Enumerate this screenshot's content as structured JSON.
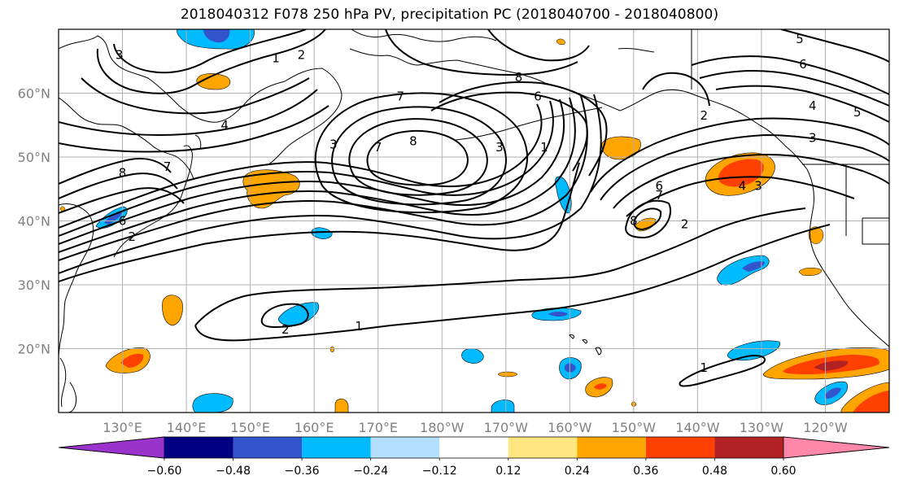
{
  "title": "2018040312 F078 250 hPa PV, precipitation PC (2018040700 - 2018040800)",
  "map": {
    "lon_range": [
      120,
      250
    ],
    "lat_range": [
      10,
      70
    ],
    "lat_ticks": [
      {
        "value": 20,
        "label": "20°N"
      },
      {
        "value": 30,
        "label": "30°N"
      },
      {
        "value": 40,
        "label": "40°N"
      },
      {
        "value": 50,
        "label": "50°N"
      },
      {
        "value": 60,
        "label": "60°N"
      }
    ],
    "lon_ticks": [
      {
        "value": 130,
        "label": "130°E"
      },
      {
        "value": 140,
        "label": "140°E"
      },
      {
        "value": 150,
        "label": "150°E"
      },
      {
        "value": 160,
        "label": "160°E"
      },
      {
        "value": 170,
        "label": "170°E"
      },
      {
        "value": 180,
        "label": "180°W"
      },
      {
        "value": 190,
        "label": "170°W"
      },
      {
        "value": 200,
        "label": "160°W"
      },
      {
        "value": 210,
        "label": "150°W"
      },
      {
        "value": 220,
        "label": "140°W"
      },
      {
        "value": 230,
        "label": "130°W"
      },
      {
        "value": 240,
        "label": "120°W"
      }
    ],
    "gridlines": true,
    "pv_contour_labels": [
      {
        "text": "3",
        "lon": 129.5,
        "lat": 66
      },
      {
        "text": "1",
        "lon": 154,
        "lat": 65.5
      },
      {
        "text": "2",
        "lon": 158,
        "lat": 66
      },
      {
        "text": "4",
        "lon": 146,
        "lat": 55
      },
      {
        "text": "3",
        "lon": 163,
        "lat": 52
      },
      {
        "text": "7",
        "lon": 137,
        "lat": 48.5
      },
      {
        "text": "8",
        "lon": 130,
        "lat": 47.5
      },
      {
        "text": "6",
        "lon": 130,
        "lat": 40
      },
      {
        "text": "2",
        "lon": 131.5,
        "lat": 37.5
      },
      {
        "text": "7",
        "lon": 173.5,
        "lat": 59.5
      },
      {
        "text": "7",
        "lon": 170,
        "lat": 51.5
      },
      {
        "text": "8",
        "lon": 175.5,
        "lat": 52.5
      },
      {
        "text": "8",
        "lon": 192,
        "lat": 62.5
      },
      {
        "text": "6",
        "lon": 195,
        "lat": 59.5
      },
      {
        "text": "3",
        "lon": 189,
        "lat": 51.5
      },
      {
        "text": "1",
        "lon": 196,
        "lat": 51.5
      },
      {
        "text": "2",
        "lon": 221,
        "lat": 56.5
      },
      {
        "text": "6",
        "lon": 214,
        "lat": 45.5
      },
      {
        "text": "7",
        "lon": 214,
        "lat": 44
      },
      {
        "text": "8",
        "lon": 210,
        "lat": 40
      },
      {
        "text": "2",
        "lon": 218,
        "lat": 39.5
      },
      {
        "text": "4",
        "lon": 227,
        "lat": 45.5
      },
      {
        "text": "3",
        "lon": 229.5,
        "lat": 45.5
      },
      {
        "text": "5",
        "lon": 236,
        "lat": 68.5
      },
      {
        "text": "6",
        "lon": 236.5,
        "lat": 64.5
      },
      {
        "text": "4",
        "lon": 238,
        "lat": 58
      },
      {
        "text": "5",
        "lon": 245,
        "lat": 57
      },
      {
        "text": "3",
        "lon": 238,
        "lat": 53
      },
      {
        "text": "1",
        "lon": 167,
        "lat": 23.5
      },
      {
        "text": "2",
        "lon": 155.5,
        "lat": 23
      },
      {
        "text": "1",
        "lon": 221,
        "lat": 17
      }
    ]
  },
  "colorbar": {
    "ticks": [
      "−0.60",
      "−0.48",
      "−0.36",
      "−0.24",
      "−0.12",
      "0.12",
      "0.24",
      "0.36",
      "0.48",
      "0.60"
    ],
    "colors": [
      "#9933cc",
      "#000080",
      "#3355cc",
      "#00bbff",
      "#b3e0ff",
      "#ffffff",
      "#ffe680",
      "#ffa500",
      "#ff4000",
      "#b22222",
      "#ff88aa"
    ]
  },
  "colors": {
    "contour": "#000000",
    "coast": "#000000",
    "grid": "#b0b0b0"
  }
}
